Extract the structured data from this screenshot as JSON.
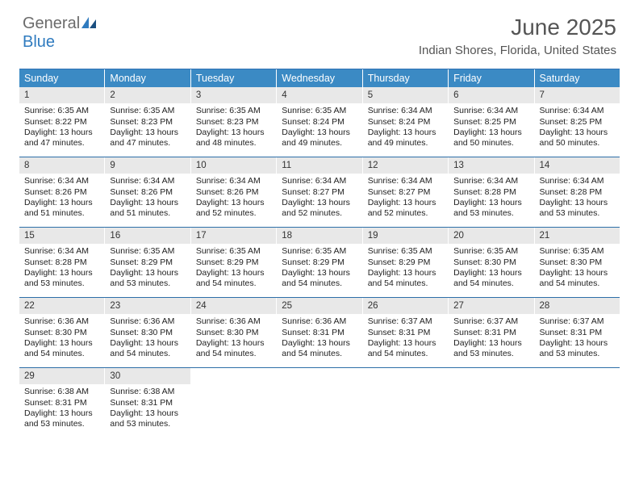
{
  "brand": {
    "general": "General",
    "blue": "Blue"
  },
  "title": "June 2025",
  "location": "Indian Shores, Florida, United States",
  "colors": {
    "header_bg": "#3b8ac4",
    "header_text": "#ffffff",
    "rule": "#2d6fa8",
    "daynum_bg": "#e8e8e8",
    "body_text": "#222222",
    "title_text": "#555555",
    "logo_gray": "#6b6b6b",
    "logo_blue": "#2f7bbf",
    "page_bg": "#ffffff"
  },
  "typography": {
    "title_fontsize": 28,
    "location_fontsize": 15,
    "dow_fontsize": 12.5,
    "daynum_fontsize": 11.5,
    "body_fontsize": 10.5
  },
  "dow": [
    "Sunday",
    "Monday",
    "Tuesday",
    "Wednesday",
    "Thursday",
    "Friday",
    "Saturday"
  ],
  "weeks": [
    [
      {
        "n": "1",
        "sr": "Sunrise: 6:35 AM",
        "ss": "Sunset: 8:22 PM",
        "dl": "Daylight: 13 hours and 47 minutes."
      },
      {
        "n": "2",
        "sr": "Sunrise: 6:35 AM",
        "ss": "Sunset: 8:23 PM",
        "dl": "Daylight: 13 hours and 47 minutes."
      },
      {
        "n": "3",
        "sr": "Sunrise: 6:35 AM",
        "ss": "Sunset: 8:23 PM",
        "dl": "Daylight: 13 hours and 48 minutes."
      },
      {
        "n": "4",
        "sr": "Sunrise: 6:35 AM",
        "ss": "Sunset: 8:24 PM",
        "dl": "Daylight: 13 hours and 49 minutes."
      },
      {
        "n": "5",
        "sr": "Sunrise: 6:34 AM",
        "ss": "Sunset: 8:24 PM",
        "dl": "Daylight: 13 hours and 49 minutes."
      },
      {
        "n": "6",
        "sr": "Sunrise: 6:34 AM",
        "ss": "Sunset: 8:25 PM",
        "dl": "Daylight: 13 hours and 50 minutes."
      },
      {
        "n": "7",
        "sr": "Sunrise: 6:34 AM",
        "ss": "Sunset: 8:25 PM",
        "dl": "Daylight: 13 hours and 50 minutes."
      }
    ],
    [
      {
        "n": "8",
        "sr": "Sunrise: 6:34 AM",
        "ss": "Sunset: 8:26 PM",
        "dl": "Daylight: 13 hours and 51 minutes."
      },
      {
        "n": "9",
        "sr": "Sunrise: 6:34 AM",
        "ss": "Sunset: 8:26 PM",
        "dl": "Daylight: 13 hours and 51 minutes."
      },
      {
        "n": "10",
        "sr": "Sunrise: 6:34 AM",
        "ss": "Sunset: 8:26 PM",
        "dl": "Daylight: 13 hours and 52 minutes."
      },
      {
        "n": "11",
        "sr": "Sunrise: 6:34 AM",
        "ss": "Sunset: 8:27 PM",
        "dl": "Daylight: 13 hours and 52 minutes."
      },
      {
        "n": "12",
        "sr": "Sunrise: 6:34 AM",
        "ss": "Sunset: 8:27 PM",
        "dl": "Daylight: 13 hours and 52 minutes."
      },
      {
        "n": "13",
        "sr": "Sunrise: 6:34 AM",
        "ss": "Sunset: 8:28 PM",
        "dl": "Daylight: 13 hours and 53 minutes."
      },
      {
        "n": "14",
        "sr": "Sunrise: 6:34 AM",
        "ss": "Sunset: 8:28 PM",
        "dl": "Daylight: 13 hours and 53 minutes."
      }
    ],
    [
      {
        "n": "15",
        "sr": "Sunrise: 6:34 AM",
        "ss": "Sunset: 8:28 PM",
        "dl": "Daylight: 13 hours and 53 minutes."
      },
      {
        "n": "16",
        "sr": "Sunrise: 6:35 AM",
        "ss": "Sunset: 8:29 PM",
        "dl": "Daylight: 13 hours and 53 minutes."
      },
      {
        "n": "17",
        "sr": "Sunrise: 6:35 AM",
        "ss": "Sunset: 8:29 PM",
        "dl": "Daylight: 13 hours and 54 minutes."
      },
      {
        "n": "18",
        "sr": "Sunrise: 6:35 AM",
        "ss": "Sunset: 8:29 PM",
        "dl": "Daylight: 13 hours and 54 minutes."
      },
      {
        "n": "19",
        "sr": "Sunrise: 6:35 AM",
        "ss": "Sunset: 8:29 PM",
        "dl": "Daylight: 13 hours and 54 minutes."
      },
      {
        "n": "20",
        "sr": "Sunrise: 6:35 AM",
        "ss": "Sunset: 8:30 PM",
        "dl": "Daylight: 13 hours and 54 minutes."
      },
      {
        "n": "21",
        "sr": "Sunrise: 6:35 AM",
        "ss": "Sunset: 8:30 PM",
        "dl": "Daylight: 13 hours and 54 minutes."
      }
    ],
    [
      {
        "n": "22",
        "sr": "Sunrise: 6:36 AM",
        "ss": "Sunset: 8:30 PM",
        "dl": "Daylight: 13 hours and 54 minutes."
      },
      {
        "n": "23",
        "sr": "Sunrise: 6:36 AM",
        "ss": "Sunset: 8:30 PM",
        "dl": "Daylight: 13 hours and 54 minutes."
      },
      {
        "n": "24",
        "sr": "Sunrise: 6:36 AM",
        "ss": "Sunset: 8:30 PM",
        "dl": "Daylight: 13 hours and 54 minutes."
      },
      {
        "n": "25",
        "sr": "Sunrise: 6:36 AM",
        "ss": "Sunset: 8:31 PM",
        "dl": "Daylight: 13 hours and 54 minutes."
      },
      {
        "n": "26",
        "sr": "Sunrise: 6:37 AM",
        "ss": "Sunset: 8:31 PM",
        "dl": "Daylight: 13 hours and 54 minutes."
      },
      {
        "n": "27",
        "sr": "Sunrise: 6:37 AM",
        "ss": "Sunset: 8:31 PM",
        "dl": "Daylight: 13 hours and 53 minutes."
      },
      {
        "n": "28",
        "sr": "Sunrise: 6:37 AM",
        "ss": "Sunset: 8:31 PM",
        "dl": "Daylight: 13 hours and 53 minutes."
      }
    ],
    [
      {
        "n": "29",
        "sr": "Sunrise: 6:38 AM",
        "ss": "Sunset: 8:31 PM",
        "dl": "Daylight: 13 hours and 53 minutes."
      },
      {
        "n": "30",
        "sr": "Sunrise: 6:38 AM",
        "ss": "Sunset: 8:31 PM",
        "dl": "Daylight: 13 hours and 53 minutes."
      },
      null,
      null,
      null,
      null,
      null
    ]
  ]
}
